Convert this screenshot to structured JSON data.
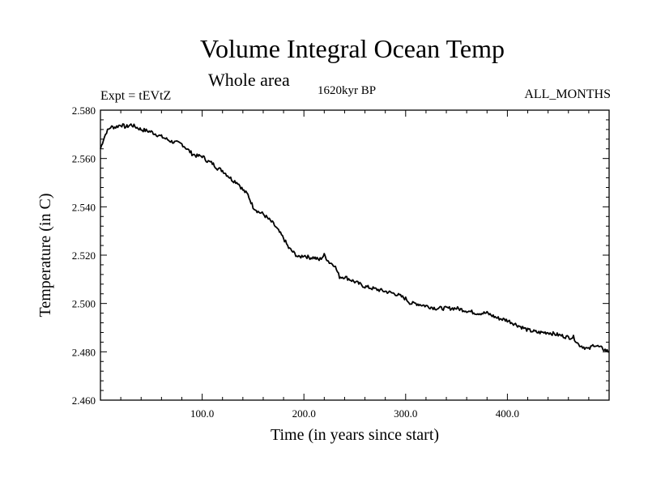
{
  "chart_data": {
    "type": "line",
    "title": "Volume Integral Ocean Temp",
    "subtitle": "Whole area",
    "left_annotation": "Expt = tEVtZ",
    "center_annotation": "1620kyr BP",
    "right_annotation": "ALL_MONTHS",
    "xlabel": "Time (in years since start)",
    "ylabel": "Temperature (in C)",
    "xlim": [
      0,
      500
    ],
    "ylim": [
      2.46,
      2.58
    ],
    "x_ticks": [
      100,
      200,
      300,
      400
    ],
    "x_tick_labels": [
      "100.0",
      "200.0",
      "300.0",
      "400.0"
    ],
    "y_ticks": [
      2.46,
      2.48,
      2.5,
      2.52,
      2.54,
      2.56,
      2.58
    ],
    "y_tick_labels": [
      "2.460",
      "2.480",
      "2.500",
      "2.520",
      "2.540",
      "2.560",
      "2.580"
    ],
    "grid": false,
    "series": [
      {
        "name": "Volume Integral Ocean Temp",
        "x": [
          0,
          3,
          6,
          10,
          15,
          20,
          25,
          30,
          35,
          40,
          50,
          60,
          70,
          80,
          85,
          90,
          95,
          100,
          105,
          110,
          115,
          120,
          125,
          130,
          135,
          140,
          145,
          150,
          155,
          160,
          165,
          170,
          175,
          180,
          185,
          190,
          195,
          200,
          205,
          210,
          215,
          220,
          225,
          230,
          235,
          240,
          245,
          250,
          260,
          270,
          280,
          290,
          300,
          305,
          310,
          320,
          330,
          340,
          350,
          360,
          370,
          380,
          390,
          400,
          410,
          420,
          430,
          440,
          450,
          460,
          465,
          470,
          475,
          480,
          485,
          490,
          495,
          500
        ],
        "y": [
          2.564,
          2.568,
          2.571,
          2.573,
          2.573,
          2.574,
          2.573,
          2.574,
          2.573,
          2.572,
          2.571,
          2.569,
          2.567,
          2.566,
          2.564,
          2.562,
          2.561,
          2.561,
          2.559,
          2.558,
          2.556,
          2.555,
          2.553,
          2.551,
          2.55,
          2.547,
          2.545,
          2.54,
          2.538,
          2.537,
          2.535,
          2.533,
          2.53,
          2.527,
          2.523,
          2.521,
          2.519,
          2.52,
          2.519,
          2.519,
          2.518,
          2.52,
          2.517,
          2.516,
          2.511,
          2.511,
          2.51,
          2.509,
          2.507,
          2.506,
          2.505,
          2.504,
          2.502,
          2.5,
          2.5,
          2.499,
          2.498,
          2.498,
          2.498,
          2.497,
          2.496,
          2.496,
          2.494,
          2.493,
          2.491,
          2.489,
          2.488,
          2.488,
          2.487,
          2.486,
          2.486,
          2.483,
          2.482,
          2.481,
          2.483,
          2.482,
          2.481,
          2.48
        ]
      }
    ]
  }
}
